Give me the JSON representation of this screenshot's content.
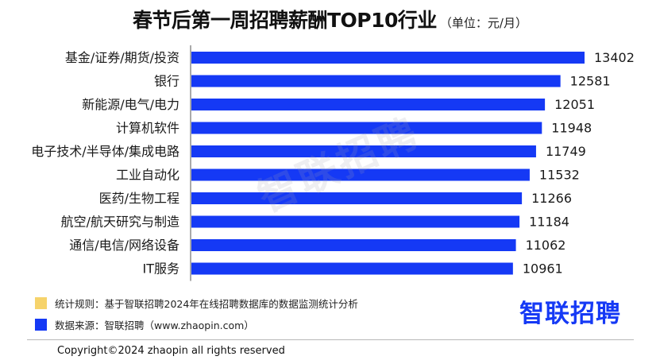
{
  "header": {
    "title": "春节后第一周招聘薪酬TOP10行业",
    "unit": "（单位：元/月）"
  },
  "chart_data": {
    "type": "bar",
    "orientation": "horizontal",
    "categories": [
      "基金/证券/期货/投资",
      "银行",
      "新能源/电气/电力",
      "计算机软件",
      "电子技术/半导体/集成电路",
      "工业自动化",
      "医药/生物工程",
      "航空/航天研究与制造",
      "通信/电信/网络设备",
      "IT服务"
    ],
    "values": [
      13402,
      12581,
      12051,
      11948,
      11749,
      11532,
      11266,
      11184,
      11062,
      10961
    ],
    "bar_color": "#1539f5"
  },
  "watermark": {
    "text": "智联招聘"
  },
  "legend": {
    "items": [
      {
        "color": "#f6d36b",
        "text": "统计规则：基于智联招聘2024年在线招聘数据库的数据监测统计分析"
      },
      {
        "color": "#1539f5",
        "text": "数据来源：智联招聘（www.zhaopin.com）"
      }
    ]
  },
  "brand": {
    "logo_text": "智联招聘",
    "color": "#1539f5"
  },
  "footer": {
    "copyright": "Copyright©2024 zhaopin all rights reserved"
  }
}
